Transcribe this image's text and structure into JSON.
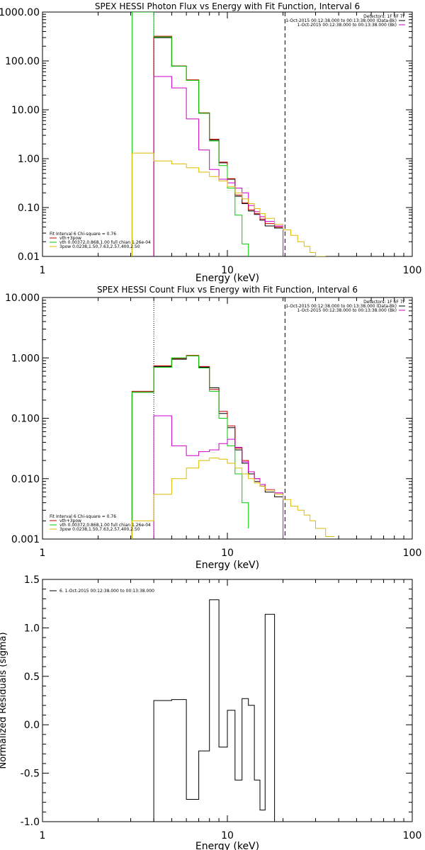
{
  "colors": {
    "axis": "#000000",
    "black_series": "#000000",
    "red_series": "#cc0000",
    "magenta_series": "#cc00cc",
    "green_series": "#00cc00",
    "yellow_series": "#ddbb00"
  },
  "chart_data": [
    {
      "type": "line",
      "title": "SPEX HESSI Photon Flux vs Energy with Fit Function, Interval 6",
      "xlabel": "Energy (keV)",
      "ylabel": "",
      "xscale": "log",
      "yscale": "log",
      "xlim": [
        1,
        100
      ],
      "ylim": [
        0.01,
        1000
      ],
      "xticks": [
        1,
        10,
        100
      ],
      "xtick_labels": [
        "1",
        "10",
        "100"
      ],
      "yticks": [
        0.01,
        0.1,
        1,
        10,
        100,
        1000
      ],
      "ytick_labels": [
        "0.01",
        "0.10",
        "1.00",
        "10.00",
        "100.00",
        "1000.00"
      ],
      "vlines": [
        {
          "x": 4.0,
          "style": "dotted"
        },
        {
          "x": 20.5,
          "style": "dashed"
        }
      ],
      "legend_top": [
        "Detectors: 1F 6F 7F",
        "1-Oct-2015 00:12:38.000 to 00:13:38.000 (Data-Bk)",
        "1-Oct-2015 00:12:38.000 to 00:13:38.000 (Bk)"
      ],
      "legend_bottom": [
        "Fit Interval 6   Chi-square = 0.76",
        "vth+3pow",
        "vth 0.00372,0.868,1.00   full chian 1.26e-04",
        "3pow 0.0238,1.50,7.63,2.57,400,2.50"
      ],
      "series": [
        {
          "color_key": "black_series",
          "edges": [
            3.0,
            4.0,
            5.0,
            6.0,
            7.0,
            8.0,
            9.0,
            10.0,
            11.0,
            12.0,
            13.0,
            14.0,
            15.0,
            16.0,
            18.0,
            20.0
          ],
          "values": [
            null,
            300,
            78,
            40,
            8.5,
            2.4,
            0.82,
            0.38,
            0.17,
            0.12,
            0.085,
            0.072,
            0.055,
            0.042,
            0.038
          ]
        },
        {
          "color_key": "red_series",
          "edges": [
            4.0,
            5.0,
            6.0,
            7.0,
            8.0,
            9.0,
            10.0,
            11.0,
            12.0,
            13.0,
            14.0,
            15.0,
            16.0,
            18.0,
            20.0
          ],
          "values": [
            320,
            79,
            41,
            8.7,
            2.5,
            0.85,
            0.39,
            0.18,
            0.125,
            0.09,
            0.075,
            0.058,
            0.047,
            0.04
          ]
        },
        {
          "color_key": "green_series",
          "edges": [
            3.05,
            4.0,
            5.0,
            6.0,
            7.0,
            8.0,
            9.0,
            10.0,
            11.0,
            12.0,
            13.0
          ],
          "values": [
            1000,
            310,
            78,
            40,
            8.5,
            2.3,
            0.72,
            0.25,
            0.07,
            0.018,
            0.01
          ]
        },
        {
          "color_key": "magenta_series",
          "edges": [
            4.0,
            5.0,
            6.0,
            7.0,
            8.0,
            9.0,
            10.0,
            11.0,
            12.0,
            13.0,
            14.0,
            15.0,
            16.0,
            18.0,
            20.0
          ],
          "values": [
            48,
            28,
            6.5,
            1.5,
            0.6,
            0.38,
            0.32,
            0.25,
            0.2,
            0.11,
            0.082,
            0.065,
            0.052,
            0.042,
            0.01
          ]
        },
        {
          "color_key": "yellow_series",
          "edges": [
            3.05,
            4.0,
            5.0,
            6.0,
            7.0,
            8.0,
            9.0,
            10.0,
            11.0,
            12.0,
            13.0,
            14.0,
            15.0,
            16.0,
            18.0,
            20.0,
            22.0,
            24.0,
            26.0,
            28.0,
            30.0,
            34.0
          ],
          "values": [
            1.3,
            0.9,
            0.78,
            0.65,
            0.53,
            0.43,
            0.35,
            0.27,
            0.2,
            0.15,
            0.12,
            0.095,
            0.075,
            0.06,
            0.045,
            0.035,
            0.027,
            0.02,
            0.016,
            0.012,
            0.01
          ]
        }
      ]
    },
    {
      "type": "line",
      "title": "SPEX HESSI Count Flux vs Energy with Fit Function, Interval 6",
      "xlabel": "Energy (keV)",
      "ylabel": "",
      "xscale": "log",
      "yscale": "log",
      "xlim": [
        1,
        100
      ],
      "ylim": [
        0.001,
        10
      ],
      "xticks": [
        1,
        10,
        100
      ],
      "xtick_labels": [
        "1",
        "10",
        "100"
      ],
      "yticks": [
        0.001,
        0.01,
        0.1,
        1,
        10
      ],
      "ytick_labels": [
        "0.001",
        "0.010",
        "0.100",
        "1.000",
        "10.000"
      ],
      "vlines": [
        {
          "x": 4.0,
          "style": "dotted"
        },
        {
          "x": 20.5,
          "style": "dashed"
        }
      ],
      "legend_top": [
        "Detectors: 1F 6F 7F",
        "1-Oct-2015 00:12:38.000 to 00:13:38.000 (Data-Bk)",
        "1-Oct-2015 00:12:38.000 to 00:13:38.000 (Bk)"
      ],
      "legend_bottom": [
        "Fit Interval 6   Chi-square = 0.76",
        "vth+3pow",
        "vth 0.00372,0.868,1.00   full chian 1.26e-04",
        "3pow 0.0238,1.50,7.63,2.57,400,2.50"
      ],
      "series": [
        {
          "color_key": "black_series",
          "edges": [
            3.05,
            4.0,
            5.0,
            6.0,
            7.0,
            8.0,
            9.0,
            10.0,
            11.0,
            12.0,
            13.0,
            14.0,
            15.0,
            16.0,
            18.0,
            20.0
          ],
          "values": [
            0.27,
            0.72,
            0.95,
            1.08,
            0.7,
            0.32,
            0.12,
            0.07,
            0.03,
            0.018,
            0.012,
            0.009,
            0.0075,
            0.006,
            0.005
          ]
        },
        {
          "color_key": "red_series",
          "edges": [
            3.05,
            4.0,
            5.0,
            6.0,
            7.0,
            8.0,
            9.0,
            10.0,
            11.0,
            12.0,
            13.0,
            14.0,
            15.0,
            16.0,
            18.0,
            20.0
          ],
          "values": [
            0.28,
            0.74,
            0.98,
            1.1,
            0.72,
            0.3,
            0.13,
            0.075,
            0.032,
            0.02,
            0.013,
            0.01,
            0.008,
            0.0065,
            0.0058
          ]
        },
        {
          "color_key": "green_series",
          "edges": [
            3.05,
            4.0,
            5.0,
            6.0,
            7.0,
            8.0,
            9.0,
            10.0,
            11.0,
            12.0,
            13.0
          ],
          "values": [
            0.27,
            0.7,
            1.0,
            1.08,
            0.68,
            0.28,
            0.1,
            0.035,
            0.012,
            0.004,
            0.0015
          ]
        },
        {
          "color_key": "magenta_series",
          "edges": [
            4.0,
            5.0,
            6.0,
            7.0,
            8.0,
            9.0,
            10.0,
            11.0,
            12.0,
            13.0,
            14.0,
            15.0,
            16.0,
            18.0,
            20.0
          ],
          "values": [
            0.11,
            0.035,
            0.024,
            0.028,
            0.03,
            0.038,
            0.045,
            0.033,
            0.019,
            0.013,
            0.01,
            0.008,
            0.0066,
            0.0058,
            0.001
          ]
        },
        {
          "color_key": "yellow_series",
          "edges": [
            3.05,
            4.0,
            5.0,
            6.0,
            7.0,
            8.0,
            9.0,
            10.0,
            11.0,
            12.0,
            13.0,
            14.0,
            15.0,
            16.0,
            18.0,
            20.0,
            22.0,
            24.0,
            26.0,
            28.0,
            30.0,
            34.0,
            38.0
          ],
          "values": [
            0.002,
            0.0055,
            0.01,
            0.015,
            0.02,
            0.022,
            0.021,
            0.018,
            0.015,
            0.012,
            0.01,
            0.0085,
            0.0075,
            0.0065,
            0.0055,
            0.0045,
            0.0035,
            0.003,
            0.0025,
            0.002,
            0.0015,
            0.0011
          ]
        }
      ]
    },
    {
      "type": "line",
      "title": "",
      "xlabel": "Energy (keV)",
      "ylabel": "Normalized Residuals (sigma)",
      "xscale": "log",
      "yscale": "linear",
      "xlim": [
        1,
        100
      ],
      "ylim": [
        -1.0,
        1.5
      ],
      "xticks": [
        1,
        10,
        100
      ],
      "xtick_labels": [
        "1",
        "10",
        "100"
      ],
      "yticks": [
        -1.0,
        -0.5,
        0.0,
        0.5,
        1.0,
        1.5
      ],
      "ytick_labels": [
        "-1.0",
        "-0.5",
        "0.0",
        "0.5",
        "1.0",
        "1.5"
      ],
      "legend_top": [
        "6.  1-Oct-2015 00:12:38.000 to 00:13:38.000"
      ],
      "series": [
        {
          "color_key": "black_series",
          "edges": [
            4.0,
            5.0,
            6.0,
            7.0,
            8.0,
            9.0,
            10.0,
            11.0,
            12.0,
            13.0,
            14.0,
            15.0,
            16.0,
            18.0,
            20.0
          ],
          "values": [
            0.25,
            0.26,
            -0.77,
            -0.27,
            1.29,
            -0.23,
            0.15,
            -0.57,
            0.27,
            0.2,
            -0.57,
            -0.88,
            1.14,
            -1.0
          ]
        }
      ]
    }
  ]
}
